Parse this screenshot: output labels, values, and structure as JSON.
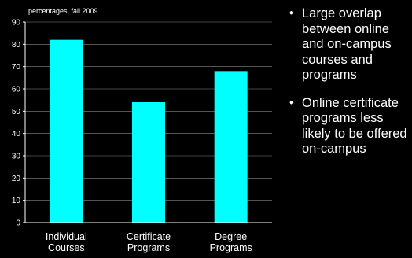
{
  "chart_data": {
    "type": "bar",
    "title": "percentages, fall 2009",
    "categories": [
      [
        "Individual",
        "Courses"
      ],
      [
        "Certificate",
        "Programs"
      ],
      [
        "Degree",
        "Programs"
      ]
    ],
    "values": [
      82,
      54,
      68
    ],
    "ylim": [
      0,
      90
    ],
    "yticks": [
      0,
      10,
      20,
      30,
      40,
      50,
      60,
      70,
      80,
      90
    ],
    "grid": true,
    "bar_color": "#00ffff",
    "axis_color": "#ffffff",
    "grid_color": "#888888"
  },
  "bullets": [
    "Large overlap between online and on-campus courses and programs",
    "Online certificate programs less likely to be offered on-campus"
  ],
  "colors": {
    "background": "#000000",
    "text": "#ffffff",
    "accent": "#00ffff"
  }
}
